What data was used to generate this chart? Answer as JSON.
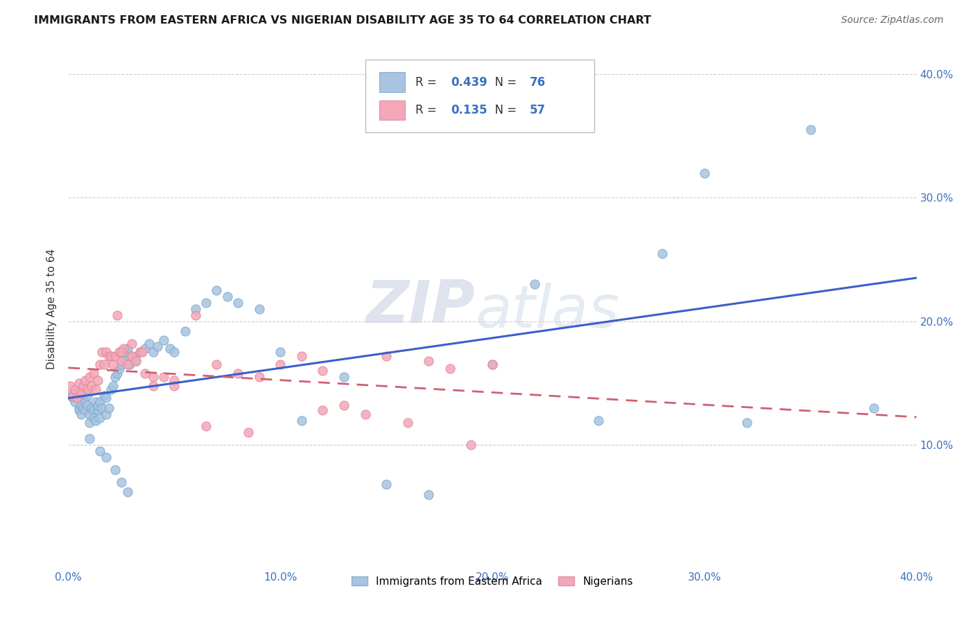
{
  "title": "IMMIGRANTS FROM EASTERN AFRICA VS NIGERIAN DISABILITY AGE 35 TO 64 CORRELATION CHART",
  "source": "Source: ZipAtlas.com",
  "ylabel": "Disability Age 35 to 64",
  "xlim": [
    0.0,
    0.4
  ],
  "ylim": [
    0.0,
    0.42
  ],
  "xticks": [
    0.0,
    0.1,
    0.2,
    0.3,
    0.4
  ],
  "xticklabels": [
    "0.0%",
    "10.0%",
    "20.0%",
    "30.0%",
    "40.0%"
  ],
  "yticks": [
    0.0,
    0.1,
    0.2,
    0.3,
    0.4
  ],
  "yticklabels_right": [
    "",
    "10.0%",
    "20.0%",
    "30.0%",
    "40.0%"
  ],
  "blue_R": 0.439,
  "blue_N": 76,
  "pink_R": 0.135,
  "pink_N": 57,
  "blue_color": "#a8c4e0",
  "pink_color": "#f4a7b9",
  "blue_line_color": "#3a5fcd",
  "pink_line_color": "#d06070",
  "watermark_zip": "ZIP",
  "watermark_atlas": "atlas",
  "legend_label1": "Immigrants from Eastern Africa",
  "legend_label2": "Nigerians",
  "blue_x": [
    0.001,
    0.002,
    0.003,
    0.004,
    0.005,
    0.005,
    0.006,
    0.006,
    0.007,
    0.007,
    0.008,
    0.008,
    0.009,
    0.009,
    0.01,
    0.01,
    0.011,
    0.012,
    0.012,
    0.013,
    0.013,
    0.014,
    0.014,
    0.015,
    0.015,
    0.016,
    0.017,
    0.018,
    0.018,
    0.019,
    0.02,
    0.021,
    0.022,
    0.023,
    0.024,
    0.025,
    0.026,
    0.027,
    0.028,
    0.029,
    0.03,
    0.032,
    0.034,
    0.036,
    0.038,
    0.04,
    0.042,
    0.045,
    0.048,
    0.05,
    0.055,
    0.06,
    0.065,
    0.07,
    0.075,
    0.08,
    0.09,
    0.1,
    0.11,
    0.13,
    0.15,
    0.17,
    0.2,
    0.22,
    0.25,
    0.28,
    0.3,
    0.32,
    0.35,
    0.38,
    0.01,
    0.015,
    0.018,
    0.022,
    0.025,
    0.028
  ],
  "blue_y": [
    0.14,
    0.138,
    0.135,
    0.142,
    0.13,
    0.128,
    0.132,
    0.125,
    0.138,
    0.13,
    0.135,
    0.128,
    0.14,
    0.132,
    0.125,
    0.118,
    0.13,
    0.128,
    0.122,
    0.135,
    0.12,
    0.128,
    0.132,
    0.135,
    0.122,
    0.13,
    0.14,
    0.138,
    0.125,
    0.13,
    0.145,
    0.148,
    0.155,
    0.158,
    0.162,
    0.165,
    0.17,
    0.175,
    0.178,
    0.165,
    0.172,
    0.168,
    0.175,
    0.178,
    0.182,
    0.175,
    0.18,
    0.185,
    0.178,
    0.175,
    0.192,
    0.21,
    0.215,
    0.225,
    0.22,
    0.215,
    0.21,
    0.175,
    0.12,
    0.155,
    0.068,
    0.06,
    0.165,
    0.23,
    0.12,
    0.255,
    0.32,
    0.118,
    0.355,
    0.13,
    0.105,
    0.095,
    0.09,
    0.08,
    0.07,
    0.062
  ],
  "pink_x": [
    0.001,
    0.002,
    0.003,
    0.004,
    0.005,
    0.006,
    0.007,
    0.008,
    0.009,
    0.01,
    0.011,
    0.012,
    0.013,
    0.014,
    0.015,
    0.016,
    0.017,
    0.018,
    0.019,
    0.02,
    0.021,
    0.022,
    0.023,
    0.024,
    0.025,
    0.026,
    0.028,
    0.03,
    0.032,
    0.034,
    0.036,
    0.04,
    0.045,
    0.05,
    0.06,
    0.07,
    0.08,
    0.09,
    0.1,
    0.11,
    0.12,
    0.13,
    0.14,
    0.15,
    0.16,
    0.17,
    0.18,
    0.19,
    0.2,
    0.025,
    0.03,
    0.035,
    0.05,
    0.065,
    0.085,
    0.12,
    0.04
  ],
  "pink_y": [
    0.148,
    0.14,
    0.145,
    0.138,
    0.15,
    0.142,
    0.148,
    0.152,
    0.145,
    0.155,
    0.148,
    0.158,
    0.145,
    0.152,
    0.165,
    0.175,
    0.165,
    0.175,
    0.172,
    0.172,
    0.165,
    0.172,
    0.205,
    0.175,
    0.168,
    0.178,
    0.165,
    0.172,
    0.168,
    0.175,
    0.158,
    0.155,
    0.155,
    0.152,
    0.205,
    0.165,
    0.158,
    0.155,
    0.165,
    0.172,
    0.16,
    0.132,
    0.125,
    0.172,
    0.118,
    0.168,
    0.162,
    0.1,
    0.165,
    0.175,
    0.182,
    0.175,
    0.148,
    0.115,
    0.11,
    0.128,
    0.148
  ]
}
